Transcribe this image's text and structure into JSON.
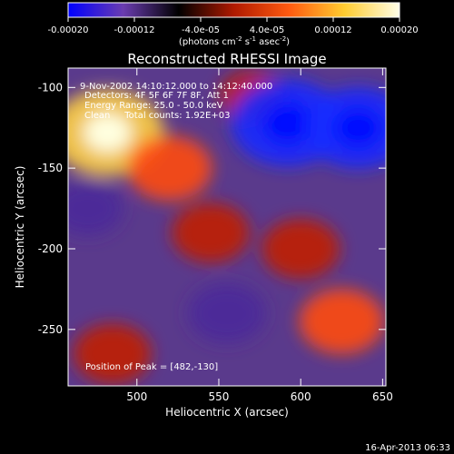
{
  "chart_data": {
    "type": "heatmap",
    "title": "Reconstructed RHESSI Image",
    "xlabel": "Heliocentric X (arcsec)",
    "ylabel": "Heliocentric Y (arcsec)",
    "xlim": [
      458,
      652
    ],
    "ylim": [
      -285,
      -88
    ],
    "x_ticks": [
      "500",
      "550",
      "600",
      "650"
    ],
    "x_tick_values": [
      500,
      550,
      600,
      650
    ],
    "y_ticks": [
      "-100",
      "-150",
      "-200",
      "-250"
    ],
    "y_tick_values": [
      -100,
      -150,
      -200,
      -250
    ],
    "colorbar": {
      "range": [
        -0.0002,
        0.0002
      ],
      "tick_labels": [
        "-0.00020",
        "-0.00012",
        "-4.0e-05",
        "4.0e-05",
        "0.00012",
        "0.00020"
      ],
      "tick_values": [
        -0.0002,
        -0.00012,
        -4e-05,
        4e-05,
        0.00012,
        0.0002
      ],
      "units_label": "(photons cm",
      "units_exp1": "-2",
      "units_mid": " s",
      "units_exp2": "-1",
      "units_tail": " asec",
      "units_exp3": "-2",
      "units_close": ")",
      "colors": [
        "#0000ff",
        "#6a3cb0",
        "#000000",
        "#b01a00",
        "#ff5a10",
        "#ffcc30",
        "#ffffe8"
      ]
    },
    "annotations": [
      "9-Nov-2002 14:10:12.000 to 14:12:40.000",
      "Detectors: 4F 5F 6F 7F 8F, Att 1",
      "Energy Range: 25.0 - 50.0 keV",
      "Clean     Total counts: 1.92E+03"
    ],
    "peak_label": "Position of Peak = [482,-130]",
    "peak": [
      482,
      -130
    ],
    "bright_sources": [
      {
        "x": 482,
        "y": -128,
        "value": 0.0002
      },
      {
        "x": 520,
        "y": -150,
        "value": 0.00012
      },
      {
        "x": 545,
        "y": -190,
        "value": 0.0001
      },
      {
        "x": 600,
        "y": -200,
        "value": 0.0001
      },
      {
        "x": 625,
        "y": -245,
        "value": 0.00012
      },
      {
        "x": 485,
        "y": -265,
        "value": 0.0001
      },
      {
        "x": 570,
        "y": -105,
        "value": 6e-05
      }
    ],
    "dark_sources": [
      {
        "x": 592,
        "y": -122,
        "value": -0.0002
      },
      {
        "x": 635,
        "y": -125,
        "value": -0.00018
      },
      {
        "x": 555,
        "y": -240,
        "value": -0.0001
      },
      {
        "x": 470,
        "y": -175,
        "value": -8e-05
      }
    ]
  },
  "footer": {
    "date": "16-Apr-2013 06:33"
  }
}
